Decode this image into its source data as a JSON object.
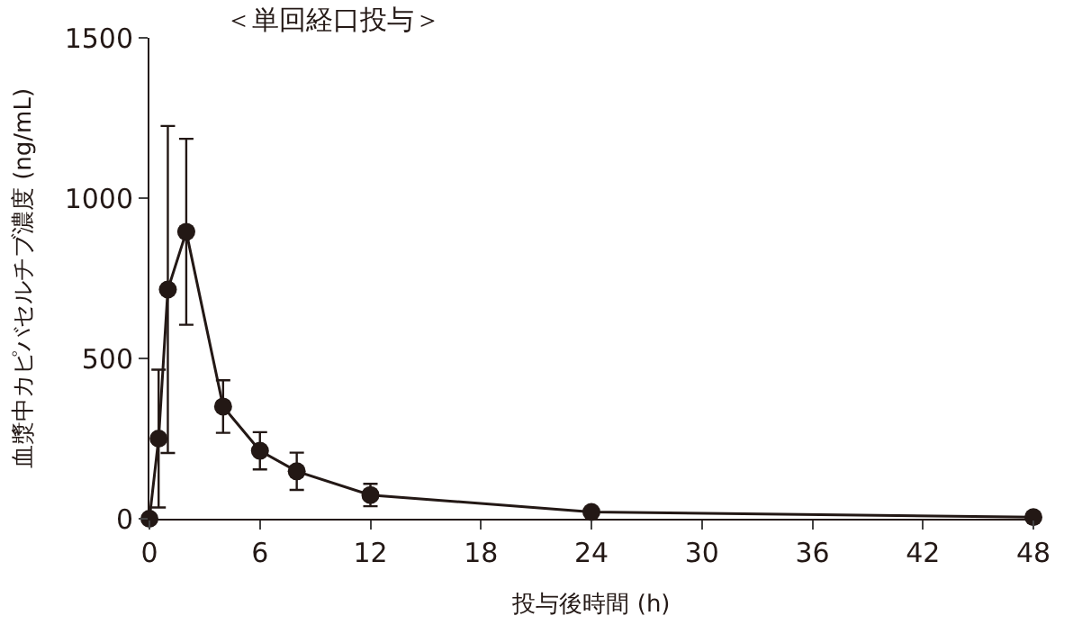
{
  "chart_data": {
    "type": "line",
    "title": "＜単回経口投与＞",
    "xlabel": "投与後時間 (h)",
    "ylabel": "血漿中カピバセルチブ濃度 (ng/mL)",
    "x": [
      0,
      0.5,
      1,
      2,
      4,
      6,
      8,
      12,
      24,
      48
    ],
    "values": [
      0,
      250,
      715,
      895,
      350,
      212,
      148,
      74,
      21,
      5
    ],
    "errors": [
      null,
      215,
      510,
      290,
      82,
      58,
      58,
      35,
      null,
      null
    ],
    "color": "#231815",
    "marker": "circle",
    "line_style": "solid",
    "xlim": [
      0,
      48
    ],
    "xticks": [
      0,
      6,
      12,
      18,
      24,
      30,
      36,
      42,
      48
    ],
    "ylim": [
      0,
      1500
    ],
    "yticks": [
      0,
      500,
      1000,
      1500
    ],
    "legend": false
  }
}
